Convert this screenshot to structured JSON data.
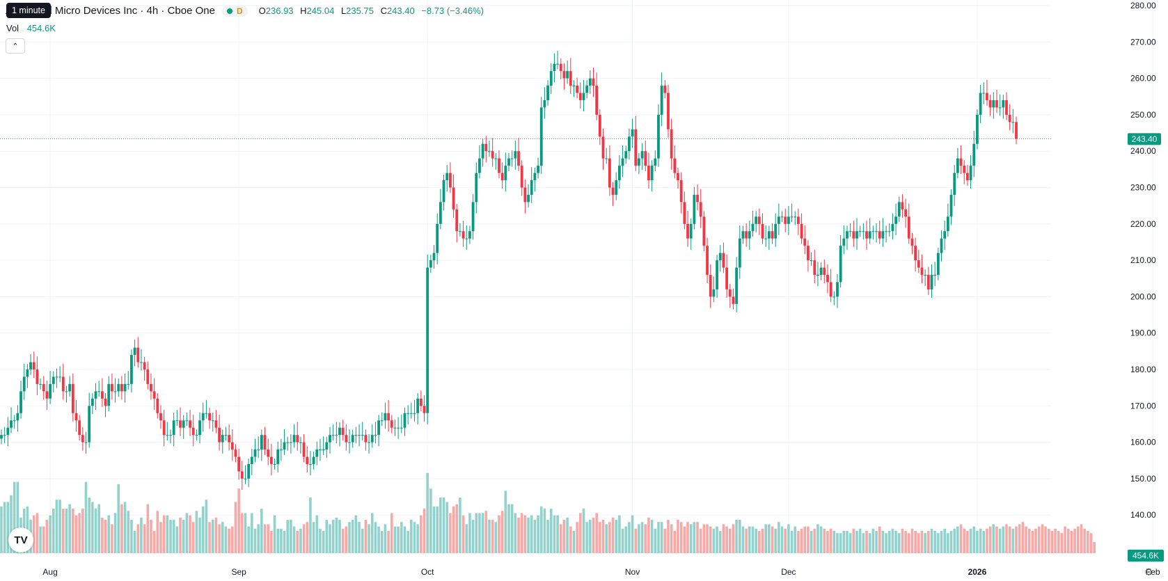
{
  "header": {
    "title": "Advanced Micro Devices Inc · 4h · Cboe One",
    "interval_tooltip": "1 minute",
    "status_letter": "D",
    "ohlc": {
      "o_label": "O",
      "o": "236.93",
      "h_label": "H",
      "h": "245.04",
      "l_label": "L",
      "l": "235.75",
      "c_label": "C",
      "c": "243.40",
      "change": "−8.73 (−3.46%)"
    },
    "volume_label": "Vol",
    "volume_value": "454.6K",
    "collapse_icon": "chevron-up-icon"
  },
  "logo_text": "TV",
  "settings_icon": "gear-icon",
  "colors": {
    "up": "#089981",
    "down": "#f23645",
    "vol_up": "#92d2cc",
    "vol_down": "#f7a9a7"
  },
  "chart_data": {
    "type": "candlestick",
    "price_axis": {
      "min": 140,
      "max": 280,
      "ticks": [
        "280.00",
        "270.00",
        "260.00",
        "250.00",
        "240.00",
        "230.00",
        "220.00",
        "210.00",
        "200.00",
        "190.00",
        "180.00",
        "170.00",
        "160.00",
        "150.00",
        "140.00"
      ]
    },
    "time_axis": {
      "ticks": [
        "Aug",
        "Sep",
        "Oct",
        "Nov",
        "Dec",
        "2026",
        "Feb"
      ],
      "tick_index": [
        15,
        73,
        131,
        194,
        242,
        300,
        354
      ]
    },
    "last_price": "243.40",
    "last_volume": "454.6K",
    "grid": true,
    "closes": [
      162,
      162,
      164,
      166,
      166,
      168,
      174,
      178,
      180,
      182,
      180,
      176,
      176,
      174,
      172,
      176,
      178,
      178,
      178,
      174,
      174,
      176,
      168,
      166,
      162,
      160,
      160,
      170,
      172,
      174,
      174,
      172,
      170,
      176,
      174,
      174,
      176,
      174,
      176,
      176,
      184,
      186,
      182,
      182,
      180,
      176,
      174,
      172,
      168,
      166,
      162,
      162,
      162,
      166,
      166,
      164,
      166,
      166,
      164,
      162,
      162,
      166,
      168,
      168,
      166,
      166,
      164,
      160,
      162,
      162,
      160,
      158,
      156,
      152,
      150,
      150,
      154,
      156,
      158,
      158,
      162,
      158,
      156,
      154,
      154,
      158,
      158,
      160,
      160,
      160,
      162,
      160,
      160,
      156,
      154,
      154,
      156,
      158,
      158,
      158,
      160,
      162,
      162,
      162,
      164,
      162,
      160,
      160,
      162,
      162,
      162,
      162,
      160,
      160,
      162,
      162,
      166,
      166,
      168,
      166,
      164,
      164,
      164,
      164,
      168,
      168,
      168,
      168,
      172,
      170,
      168,
      208,
      210,
      212,
      220,
      226,
      232,
      234,
      230,
      224,
      218,
      218,
      216,
      216,
      218,
      226,
      234,
      238,
      242,
      240,
      240,
      238,
      238,
      234,
      232,
      236,
      238,
      238,
      240,
      236,
      230,
      226,
      228,
      232,
      234,
      236,
      252,
      254,
      258,
      262,
      264,
      264,
      262,
      260,
      262,
      258,
      258,
      256,
      254,
      256,
      258,
      260,
      258,
      250,
      244,
      238,
      238,
      230,
      228,
      232,
      236,
      238,
      240,
      244,
      246,
      236,
      238,
      240,
      236,
      232,
      236,
      238,
      250,
      258,
      256,
      246,
      238,
      234,
      232,
      226,
      220,
      216,
      220,
      228,
      226,
      222,
      214,
      206,
      200,
      202,
      210,
      212,
      208,
      202,
      200,
      198,
      208,
      216,
      218,
      216,
      218,
      220,
      222,
      220,
      216,
      216,
      218,
      216,
      220,
      222,
      222,
      220,
      222,
      222,
      222,
      220,
      216,
      214,
      210,
      210,
      206,
      206,
      208,
      206,
      204,
      200,
      200,
      204,
      214,
      216,
      218,
      218,
      216,
      218,
      218,
      218,
      216,
      218,
      218,
      218,
      216,
      218,
      218,
      218,
      220,
      222,
      226,
      224,
      222,
      216,
      214,
      210,
      208,
      206,
      206,
      202,
      206,
      206,
      212,
      216,
      218,
      222,
      228,
      234,
      238,
      236,
      234,
      232,
      236,
      242,
      250,
      256,
      256,
      254,
      252,
      254,
      252,
      252,
      254,
      250,
      248,
      248,
      243.4
    ],
    "volumes": [
      21,
      23,
      23,
      26,
      32,
      32,
      16,
      20,
      21,
      15,
      17,
      18,
      12,
      12,
      15,
      17,
      20,
      24,
      24,
      20,
      20,
      22,
      20,
      17,
      18,
      20,
      32,
      25,
      23,
      20,
      22,
      16,
      15,
      17,
      13,
      18,
      31,
      22,
      23,
      19,
      15,
      10,
      13,
      16,
      13,
      22,
      15,
      10,
      19,
      14,
      17,
      17,
      15,
      15,
      12,
      16,
      15,
      18,
      17,
      14,
      19,
      16,
      21,
      24,
      14,
      15,
      16,
      13,
      14,
      12,
      11,
      12,
      23,
      29,
      18,
      18,
      12,
      18,
      11,
      13,
      20,
      13,
      13,
      10,
      17,
      11,
      11,
      10,
      15,
      15,
      12,
      10,
      11,
      13,
      14,
      25,
      14,
      17,
      11,
      10,
      15,
      13,
      15,
      16,
      15,
      11,
      12,
      14,
      15,
      17,
      14,
      11,
      15,
      13,
      18,
      14,
      12,
      10,
      13,
      10,
      18,
      12,
      12,
      14,
      12,
      10,
      15,
      14,
      13,
      17,
      20,
      36,
      29,
      21,
      21,
      25,
      25,
      23,
      18,
      21,
      22,
      25,
      17,
      13,
      18,
      15,
      18,
      18,
      18,
      19,
      15,
      15,
      14,
      17,
      19,
      28,
      22,
      22,
      18,
      16,
      18,
      17,
      16,
      17,
      15,
      17,
      21,
      20,
      15,
      20,
      17,
      17,
      13,
      15,
      16,
      12,
      10,
      14,
      18,
      20,
      14,
      15,
      16,
      18,
      14,
      15,
      13,
      14,
      16,
      15,
      17,
      11,
      12,
      14,
      17,
      11,
      13,
      14,
      13,
      16,
      15,
      11,
      14,
      14,
      11,
      15,
      13,
      10,
      15,
      14,
      12,
      14,
      13,
      14,
      14,
      11,
      13,
      13,
      12,
      11,
      12,
      10,
      13,
      12,
      11,
      13,
      15,
      15,
      12,
      11,
      12,
      12,
      11,
      10,
      11,
      13,
      13,
      12,
      11,
      14,
      12,
      11,
      13,
      10,
      12,
      10,
      11,
      12,
      12,
      10,
      11,
      13,
      12,
      11,
      10,
      11,
      10,
      9,
      9,
      10,
      10,
      9,
      11,
      10,
      11,
      9,
      10,
      9,
      11,
      10,
      12,
      10,
      9,
      10,
      11,
      10,
      9,
      11,
      10,
      9,
      11,
      10,
      9,
      10,
      9,
      10,
      11,
      10,
      9,
      10,
      11,
      9,
      10,
      11,
      12,
      13,
      11,
      10,
      11,
      12,
      10,
      11,
      10,
      11,
      12,
      13,
      12,
      11,
      12,
      13,
      12,
      11,
      12,
      13,
      14,
      12,
      11,
      10,
      11,
      12,
      13,
      12,
      11,
      10,
      11,
      10,
      9,
      12,
      11,
      10,
      11,
      12,
      13,
      11,
      10,
      9,
      5
    ]
  }
}
